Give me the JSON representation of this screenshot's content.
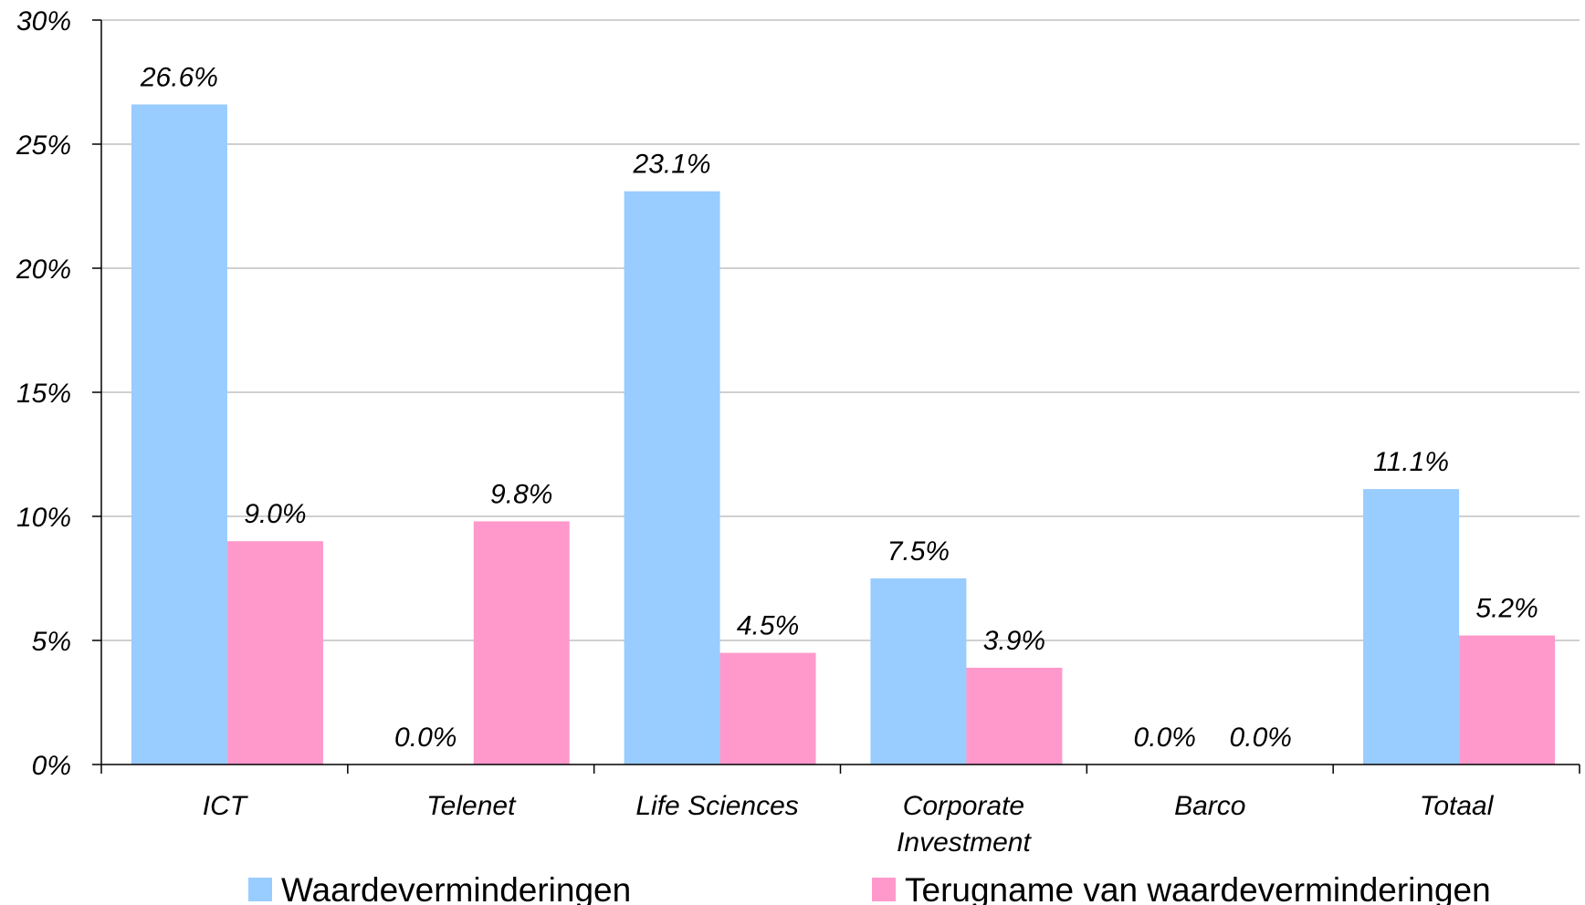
{
  "chart_data": {
    "type": "bar",
    "categories": [
      [
        "ICT"
      ],
      [
        "Telenet"
      ],
      [
        "Life Sciences"
      ],
      [
        "Corporate",
        "Investment"
      ],
      [
        "Barco"
      ],
      [
        "Totaal"
      ]
    ],
    "series": [
      {
        "name": "Waardeverminderingen",
        "values": [
          26.6,
          0.0,
          23.1,
          7.5,
          0.0,
          11.1
        ],
        "labels": [
          "26.6%",
          "0.0%",
          "23.1%",
          "7.5%",
          "0.0%",
          "11.1%"
        ],
        "color": "#99CCFF"
      },
      {
        "name": "Terugname van waardeverminderingen",
        "values": [
          9.0,
          9.8,
          4.5,
          3.9,
          0.0,
          5.2
        ],
        "labels": [
          "9.0%",
          "9.8%",
          "4.5%",
          "3.9%",
          "0.0%",
          "5.2%"
        ],
        "color": "#FF99CC"
      }
    ],
    "yticks": [
      "0%",
      "5%",
      "10%",
      "15%",
      "20%",
      "25%",
      "30%"
    ],
    "ylim": [
      0,
      30
    ],
    "ystep": 5,
    "grid": true,
    "gridColor": "#C0C0C0",
    "axisColor": "#000000",
    "legend": "bottom"
  }
}
